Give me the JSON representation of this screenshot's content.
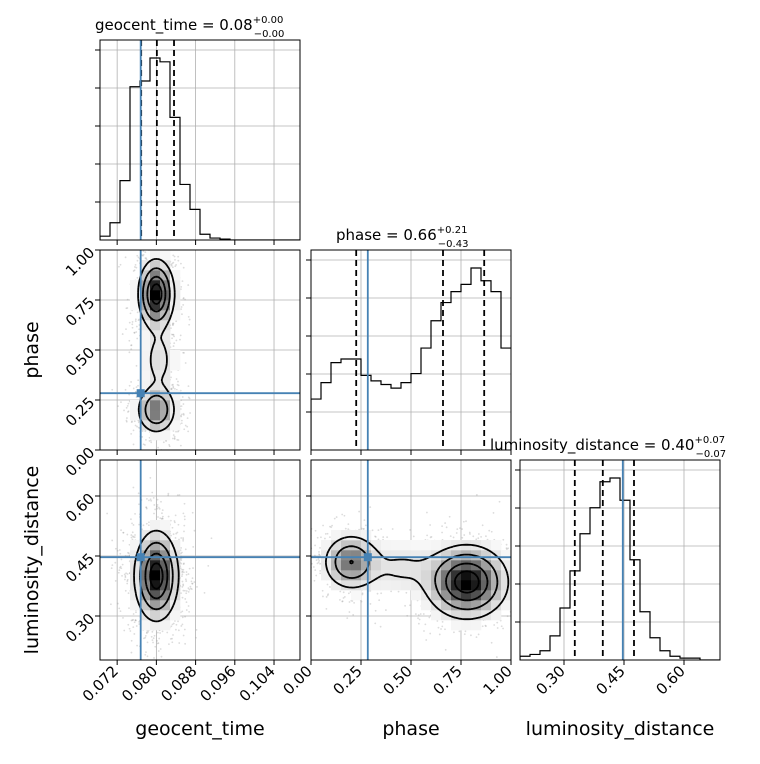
{
  "chart_data": {
    "type": "corner",
    "parameters": [
      "geocent_time",
      "phase",
      "luminosity_distance"
    ],
    "truths": {
      "geocent_time": 0.0768,
      "phase": 0.284,
      "luminosity_distance": 0.447
    },
    "truth_color": "#4682b4",
    "titles": [
      {
        "param": "geocent_time",
        "main": "geocent_time = 0.08",
        "up": "+0.00",
        "down": "−0.00"
      },
      {
        "param": "phase",
        "main": "phase = 0.66",
        "up": "+0.21",
        "down": "−0.43"
      },
      {
        "param": "luminosity_distance",
        "main": "luminosity_distance = 0.40",
        "up": "+0.07",
        "down": "−0.07"
      }
    ],
    "ranges": {
      "geocent_time": [
        0.0685,
        0.1093
      ],
      "phase": [
        0.0,
        1.0
      ],
      "luminosity_distance": [
        0.19,
        0.69
      ]
    },
    "ticks": {
      "geocent_time": [
        0.072,
        0.08,
        0.088,
        0.096,
        0.104
      ],
      "phase": [
        0.0,
        0.25,
        0.5,
        0.75,
        1.0
      ],
      "luminosity_distance": [
        0.3,
        0.45,
        0.6
      ]
    },
    "tick_labels": {
      "geocent_time": [
        "0.072",
        "0.080",
        "0.088",
        "0.096",
        "0.104"
      ],
      "phase": [
        "0.00",
        "0.25",
        "0.50",
        "0.75",
        "1.00"
      ],
      "luminosity_distance": [
        "0.30",
        "0.45",
        "0.60"
      ]
    },
    "quantiles": {
      "geocent_time": [
        0.0769,
        0.0801,
        0.0836
      ],
      "phase": [
        0.226,
        0.66,
        0.866
      ],
      "luminosity_distance": [
        0.327,
        0.397,
        0.475
      ]
    },
    "hist_geocent_time": {
      "edges_start": 0.0685,
      "bin_width": 0.00204,
      "counts": [
        2,
        9,
        31,
        80,
        83,
        95,
        93,
        64,
        29,
        16,
        3,
        1,
        0.5,
        0,
        0,
        0,
        0,
        0,
        0,
        0
      ]
    },
    "hist_phase": {
      "edges_start": 0.0,
      "bin_width": 0.05,
      "counts": [
        28,
        37,
        48,
        50,
        50,
        41,
        38,
        36,
        34,
        37,
        42,
        56,
        71,
        81,
        87,
        91,
        100,
        93,
        87,
        56
      ]
    },
    "hist_luminosity_distance": {
      "edges_start": 0.19,
      "bin_width": 0.025,
      "counts": [
        2,
        3,
        5,
        13,
        28,
        48,
        68,
        82,
        96,
        98,
        86,
        54,
        26,
        12,
        5,
        2,
        1,
        1,
        0,
        0
      ]
    },
    "grid": true,
    "legend": "none"
  }
}
